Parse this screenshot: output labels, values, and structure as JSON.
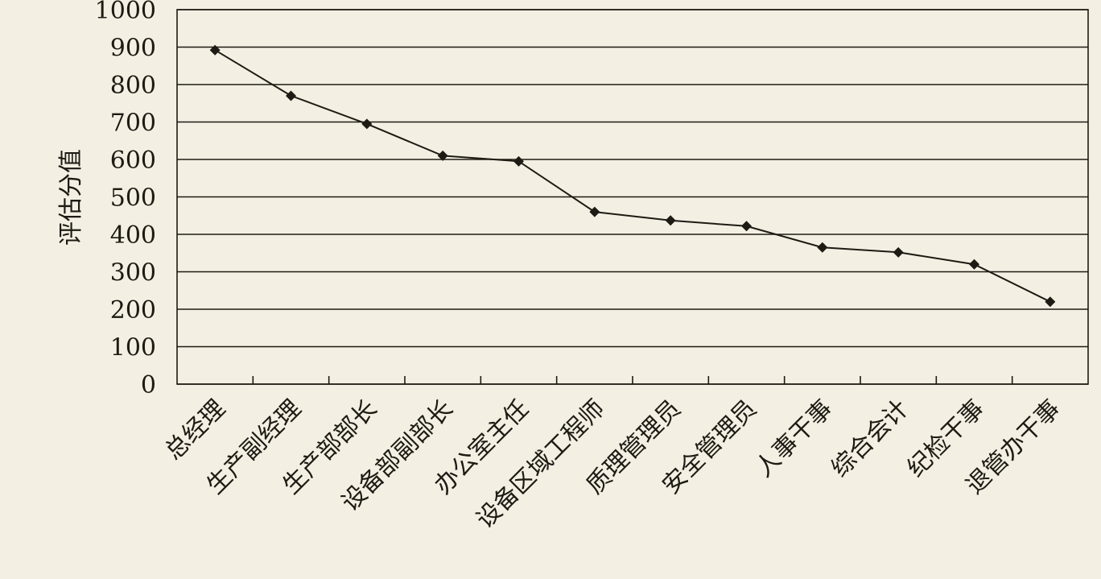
{
  "chart_data": {
    "type": "line",
    "title": "",
    "xlabel": "",
    "ylabel": "评估分值",
    "ylim": [
      0,
      1000
    ],
    "yticks": [
      0,
      100,
      200,
      300,
      400,
      500,
      600,
      700,
      800,
      900,
      1000
    ],
    "grid": true,
    "legend": "none",
    "categories": [
      "总经理",
      "生产副经理",
      "生产部部长",
      "设备部副部长",
      "办公室主任",
      "设备区域工程师",
      "质理管理员",
      "安全管理员",
      "人事干事",
      "综合会计",
      "纪检干事",
      "退管办干事"
    ],
    "series": [
      {
        "values": [
          892,
          770,
          695,
          610,
          595,
          460,
          437,
          422,
          365,
          352,
          320,
          220
        ],
        "color": "#1e1a14",
        "marker": "diamond"
      }
    ]
  }
}
